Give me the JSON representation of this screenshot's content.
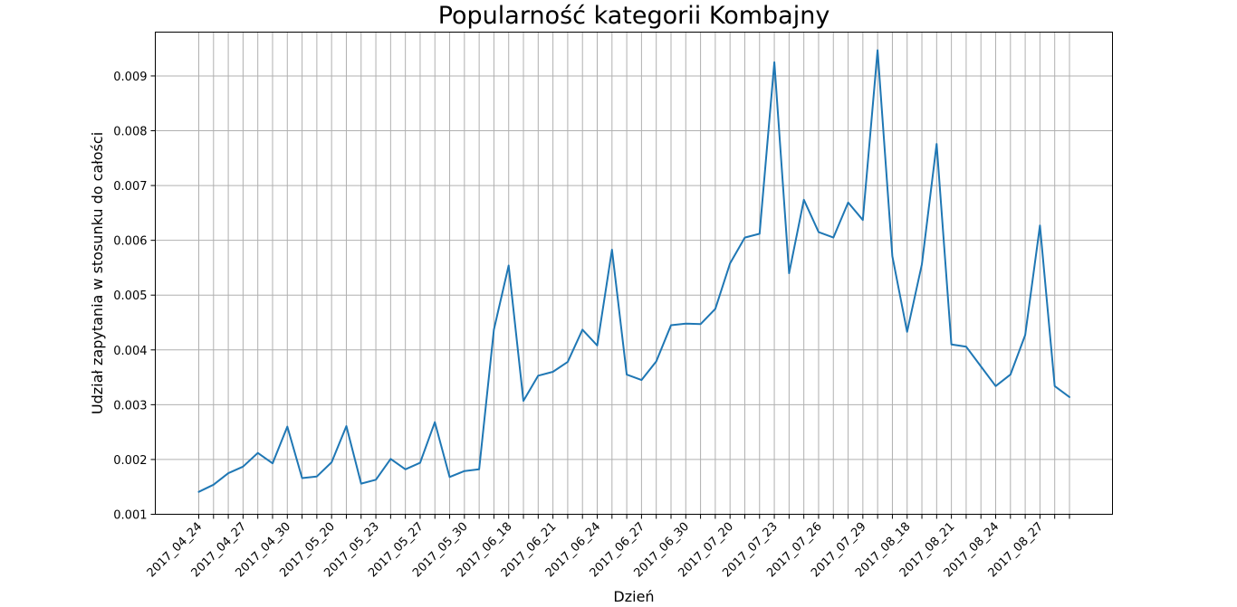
{
  "chart_data": {
    "type": "line",
    "title": "Popularność kategorii Kombajny",
    "xlabel": "Dzień",
    "ylabel": "Udział zapytania w stosunku do całości",
    "ylim": [
      0.001,
      0.0098
    ],
    "yticks": [
      "0.001",
      "0.002",
      "0.003",
      "0.004",
      "0.005",
      "0.006",
      "0.007",
      "0.008",
      "0.009"
    ],
    "grid": true,
    "line_color": "#1f77b4",
    "x_tick_labels": [
      "2017_04_24",
      "2017_04_27",
      "2017_04_30",
      "2017_05_20",
      "2017_05_23",
      "2017_05_27",
      "2017_05_30",
      "2017_06_18",
      "2017_06_21",
      "2017_06_24",
      "2017_06_27",
      "2017_06_30",
      "2017_07_20",
      "2017_07_23",
      "2017_07_26",
      "2017_07_29",
      "2017_08_18",
      "2017_08_21",
      "2017_08_24",
      "2017_08_27"
    ],
    "values": [
      0.00141,
      0.00154,
      0.00175,
      0.00187,
      0.00212,
      0.00193,
      0.0026,
      0.00166,
      0.00169,
      0.00195,
      0.00261,
      0.00156,
      0.00163,
      0.00201,
      0.00182,
      0.00194,
      0.00268,
      0.00168,
      0.00179,
      0.00182,
      0.00437,
      0.00554,
      0.00307,
      0.00353,
      0.0036,
      0.00378,
      0.00437,
      0.00408,
      0.00583,
      0.00355,
      0.00345,
      0.00379,
      0.00445,
      0.00448,
      0.00447,
      0.00475,
      0.00558,
      0.00605,
      0.00612,
      0.00925,
      0.0054,
      0.00674,
      0.00615,
      0.00605,
      0.00669,
      0.00637,
      0.00947,
      0.00571,
      0.00433,
      0.00556,
      0.00776,
      0.0041,
      0.00406,
      0.0037,
      0.00334,
      0.00355,
      0.00427,
      0.00627,
      0.00334,
      0.00314
    ]
  }
}
